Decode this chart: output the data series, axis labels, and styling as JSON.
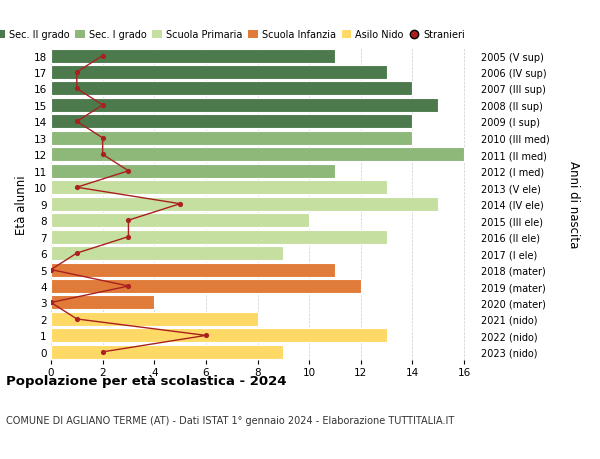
{
  "ages": [
    0,
    1,
    2,
    3,
    4,
    5,
    6,
    7,
    8,
    9,
    10,
    11,
    12,
    13,
    14,
    15,
    16,
    17,
    18
  ],
  "right_labels": [
    "2023 (nido)",
    "2022 (nido)",
    "2021 (nido)",
    "2020 (mater)",
    "2019 (mater)",
    "2018 (mater)",
    "2017 (I ele)",
    "2016 (II ele)",
    "2015 (III ele)",
    "2014 (IV ele)",
    "2013 (V ele)",
    "2012 (I med)",
    "2011 (II med)",
    "2010 (III med)",
    "2009 (I sup)",
    "2008 (II sup)",
    "2007 (III sup)",
    "2006 (IV sup)",
    "2005 (V sup)"
  ],
  "bar_values": [
    9,
    13,
    8,
    4,
    12,
    11,
    9,
    13,
    10,
    15,
    13,
    11,
    16,
    14,
    14,
    15,
    14,
    13,
    11
  ],
  "bar_colors": [
    "#FFD966",
    "#FFD966",
    "#FFD966",
    "#E07B39",
    "#E07B39",
    "#E07B39",
    "#C5DFA0",
    "#C5DFA0",
    "#C5DFA0",
    "#C5DFA0",
    "#C5DFA0",
    "#8DB87A",
    "#8DB87A",
    "#8DB87A",
    "#4D7A4D",
    "#4D7A4D",
    "#4D7A4D",
    "#4D7A4D",
    "#4D7A4D"
  ],
  "stranieri_values": [
    2,
    6,
    1,
    0,
    3,
    0,
    1,
    3,
    3,
    5,
    1,
    3,
    2,
    2,
    1,
    2,
    1,
    1,
    2
  ],
  "xlim": [
    0,
    16.5
  ],
  "ylim": [
    -0.5,
    18.5
  ],
  "ylabel": "Età alunni",
  "right_ylabel": "Anni di nascita",
  "xticks": [
    0,
    2,
    4,
    6,
    8,
    10,
    12,
    14,
    16
  ],
  "title": "Popolazione per età scolastica - 2024",
  "subtitle": "COMUNE DI AGLIANO TERME (AT) - Dati ISTAT 1° gennaio 2024 - Elaborazione TUTTITALIA.IT",
  "legend_labels": [
    "Sec. II grado",
    "Sec. I grado",
    "Scuola Primaria",
    "Scuola Infanzia",
    "Asilo Nido",
    "Stranieri"
  ],
  "legend_colors": [
    "#4D7A4D",
    "#8DB87A",
    "#C5DFA0",
    "#E07B39",
    "#FFD966",
    "#AA2020"
  ],
  "bg_color": "#FFFFFF",
  "grid_color": "#CCCCCC",
  "stranieri_color": "#AA2020",
  "bar_edge_color": "white",
  "bar_height": 0.85
}
